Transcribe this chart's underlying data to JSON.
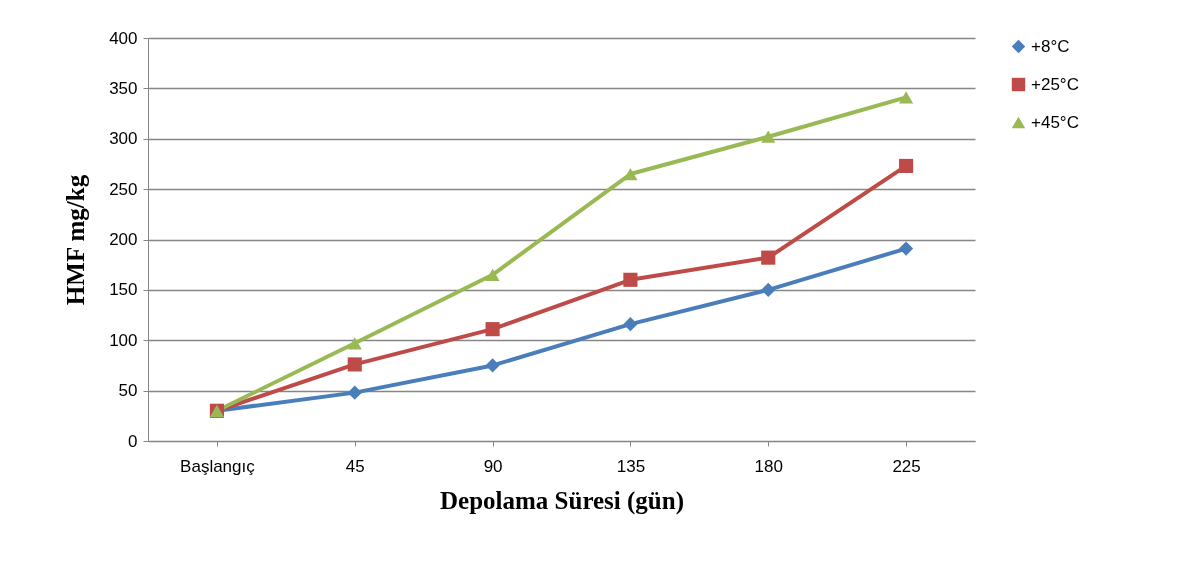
{
  "chart_data": {
    "type": "line",
    "xlabel": "Depolama Süresi (gün)",
    "ylabel": "HMF  mg/kg",
    "categories": [
      "Başlangıç",
      "45",
      "90",
      "135",
      "180",
      "225"
    ],
    "series": [
      {
        "name": "+8°C",
        "color": "#4a7ebb",
        "marker": "diamond",
        "values": [
          30,
          48,
          75,
          116,
          150,
          191
        ]
      },
      {
        "name": " +25°C",
        "color": "#be4b48",
        "marker": "square",
        "values": [
          30,
          76,
          111,
          160,
          182,
          273
        ]
      },
      {
        "name": "+45°C",
        "color": "#98b954",
        "marker": "triangle",
        "values": [
          30,
          97,
          165,
          265,
          302,
          341
        ]
      }
    ],
    "ylim": [
      0,
      400
    ],
    "yticks": [
      0,
      50,
      100,
      150,
      200,
      250,
      300,
      350,
      400
    ],
    "grid": "y",
    "legend": "right",
    "line_style": "solid"
  }
}
